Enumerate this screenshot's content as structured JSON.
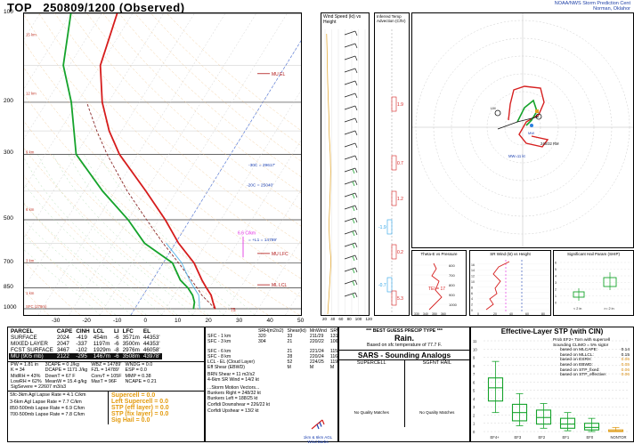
{
  "header": {
    "station": "TOP",
    "time_label": "250809/1200",
    "run_label": "(Observed)",
    "org_line1": "NOAA/NWS Storm Prediction Cent",
    "org_line2": "Norman, Oklahor"
  },
  "skewt": {
    "pressure_ticks": [
      "100",
      "200",
      "300",
      "500",
      "700",
      "850",
      "1000"
    ],
    "temp_ticks": [
      "-30",
      "-20",
      "-10",
      "0",
      "10",
      "20",
      "30",
      "40",
      "50"
    ],
    "height_labels": [
      "15 km",
      "12 km",
      "9 km",
      "6 km",
      "3 km",
      "1 km",
      "SFC (279m)"
    ],
    "annotations": {
      "mu_el": "MU EL",
      "mu_lfc": "MU LFC",
      "ml_lcl": "ML LCL",
      "hgz_top": "-30C = 29617'",
      "hgz_bot": "-20C = 25040'",
      "cape_lbl": "6.6 C/km",
      "frz_lbl": "= +L1 = 14789'",
      "pct_lbl": "75"
    }
  },
  "wind_panel": {
    "title": "Wind Speed (kt) vs Height",
    "ticks": [
      "20",
      "40",
      "60",
      "80",
      "100",
      "120"
    ]
  },
  "inferred_panel": {
    "title": "Inferred Temp Advection (C/hr)",
    "values": [
      "1.9",
      "0.7",
      "1.2",
      "-1.9",
      "0.2",
      "-0.7",
      "5.3"
    ]
  },
  "hodograph": {
    "labels": [
      "RM",
      "LM",
      "MW",
      "248/32 RM",
      "MW=11 kt"
    ]
  },
  "theta_panel": {
    "title": "Theta-E vs Pressure",
    "value": "TEI = 17",
    "ticks_x": [
      "330",
      "340",
      "350",
      "360"
    ],
    "ticks_y": [
      "600",
      "700",
      "800",
      "900",
      "1000"
    ]
  },
  "srwind_panel": {
    "title": "SR Wind (kt) vs Height",
    "ticks_x": [
      "0",
      "20",
      "40",
      "60",
      "80"
    ],
    "ticks_y": [
      "0",
      "2",
      "4",
      "6",
      "8",
      "10",
      "12",
      "14",
      "16"
    ]
  },
  "hail_panel": {
    "title": "Significant Hail Param (SHIP)",
    "labels": [
      "< 2 in",
      ">= 2 in"
    ],
    "ticks": [
      "0",
      "1",
      "2",
      "3",
      "4",
      "5",
      "6"
    ]
  },
  "parcel_table": {
    "headers": [
      "PARCEL",
      "CAPE",
      "CINH",
      "LCL",
      "LI",
      "LFC",
      "EL"
    ],
    "rows": [
      [
        "SURFACE",
        "2024",
        "-419",
        "454m",
        "-6",
        "3571m",
        "44353'"
      ],
      [
        "MIXED LAYER",
        "2047",
        "-337",
        "1197m",
        "-6",
        "3500m",
        "44353'"
      ],
      [
        "FCST SURFACE",
        "3467",
        "-102",
        "1929m",
        "-8",
        "2976m",
        "46058'"
      ],
      [
        "MU (905 mb)",
        "2122",
        "-295",
        "1467m",
        "-6",
        "3508m",
        "43978'"
      ]
    ]
  },
  "indices": [
    [
      "PW = 1.81 in",
      "3CAPE = 0 J/kg",
      "WBZ = 14789'",
      "WNDG = 0.0"
    ],
    [
      "K = 34",
      "DCAPE = 1171 J/kg",
      "FZL = 14789'",
      "ESP = 0.0"
    ],
    [
      "MidRH = 43%",
      "DownT = 67 F",
      "ConvT = 105F",
      "MMP = 0.38"
    ],
    [
      "LowRH = 62%",
      "MeanW = 15.4 g/kg",
      "MaxT = 96F",
      "NCAPE = 0.21"
    ],
    [
      "SigSevere = 22607 m3/s3",
      "",
      "",
      ""
    ]
  ],
  "lapse_rates": [
    "Sfc-3km Agl Lapse Rate = 4.1 C/km",
    "3-6km Agl Lapse Rate = 7.7 C/km",
    "850-500mb Lapse Rate = 6.9 C/km",
    "700-500mb Lapse Rate = 7.8 C/km"
  ],
  "composites": [
    "Supercell = 0.0",
    "Left Supercell = 0.0",
    "STP (eff layer) = 0.0",
    "STP (fix layer) = 0.0",
    "Sig Hail = 0.0"
  ],
  "kinematic_table": {
    "headers": [
      "",
      "SRH(m2/s2)",
      "Shear(kt)",
      "MnWind",
      "SRW"
    ],
    "rows": [
      [
        "SFC - 1 km",
        "320",
        "33",
        "211/29",
        "131/20"
      ],
      [
        "SFC - 3 km",
        "304",
        "21",
        "220/22",
        "106/16"
      ],
      [
        "",
        "",
        "",
        "",
        ""
      ],
      [
        "SFC - 6 km",
        "",
        "21",
        "221/24",
        "115/15"
      ],
      [
        "SFC - 8 km",
        "",
        "28",
        "220/24",
        "116/16"
      ],
      [
        "LCL - EL (Cloud Layer)",
        "",
        "52",
        "224/25",
        "119/14"
      ],
      [
        "Eff Shear (EBWD)",
        "",
        "M",
        "M",
        "M"
      ]
    ],
    "extra": [
      "BRN Shear = 11 m2/s2",
      "4-6km SR Wind = 14/2 kt",
      "...Storm Motion Vectors...",
      "Bunkers Right = 248/32 kt",
      "Bunkers Left = 188/25 kt",
      "Corfidi Downshear = 226/22 kt",
      "Corfidi Upshear = 13/2 kt"
    ],
    "legend": [
      "1km & 6km AGL",
      "Wind Barbs"
    ]
  },
  "precip": {
    "title": "*** BEST GUESS PRECIP TYPE ***",
    "type": "Rain.",
    "basis": "Based on sfc temperature of 77.7 F."
  },
  "sars": {
    "title": "SARS - Sounding Analogs",
    "col1": "SUPERCELL",
    "col2": "SGFNT HAIL",
    "none1": "No Quality Matches",
    "none2": "No Quality Matches"
  },
  "stp": {
    "title": "Effective-Layer STP (with CIN)",
    "prob_line1": "Prob EF2+ Torn with supercell",
    "prob_line2": "Sounding CLIMO = 5% sigtor",
    "rows": [
      [
        "based on MLCAPE:",
        "0.14"
      ],
      [
        "based on MLLCL:",
        "0.15"
      ],
      [
        "based on ESRH:",
        "0.06"
      ],
      [
        "based on EBWD:",
        "0.05"
      ],
      [
        "based on STP_fixed:",
        "0.06"
      ],
      [
        "based on STP_effective:",
        "0.06"
      ]
    ],
    "categories": [
      "EF4+",
      "EF3",
      "EF2",
      "EF1",
      "EF0",
      "NONTOR"
    ],
    "ticks": [
      "0",
      "1",
      "2",
      "3",
      "4",
      "5",
      "6",
      "7",
      "8",
      "9",
      "10",
      "11"
    ]
  },
  "chart_data": [
    {
      "type": "line",
      "name": "skew-t",
      "yaxis": "pressure (mb)",
      "ylim": [
        1000,
        100
      ],
      "xlim": [
        -40,
        50
      ],
      "series": [
        {
          "name": "temperature",
          "color": "#d61c1c",
          "points": [
            [
              1000,
              26
            ],
            [
              950,
              24
            ],
            [
              900,
              22
            ],
            [
              850,
              19
            ],
            [
              800,
              16
            ],
            [
              700,
              10
            ],
            [
              600,
              1
            ],
            [
              500,
              -8
            ],
            [
              400,
              -20
            ],
            [
              300,
              -36
            ],
            [
              250,
              -44
            ],
            [
              200,
              -52
            ],
            [
              150,
              -60
            ],
            [
              100,
              -65
            ]
          ]
        },
        {
          "name": "dewpoint",
          "color": "#15a32b",
          "points": [
            [
              1000,
              19
            ],
            [
              950,
              18
            ],
            [
              900,
              16
            ],
            [
              850,
              13
            ],
            [
              800,
              9
            ],
            [
              700,
              3
            ],
            [
              600,
              -10
            ],
            [
              500,
              -20
            ],
            [
              400,
              -34
            ],
            [
              300,
              -50
            ],
            [
              200,
              -62
            ],
            [
              150,
              -72
            ],
            [
              100,
              -80
            ]
          ]
        }
      ]
    },
    {
      "type": "bar",
      "name": "stp-boxplot",
      "categories": [
        "EF4+",
        "EF3",
        "EF2",
        "EF1",
        "EF0",
        "NONTOR"
      ],
      "boxes": [
        [
          2.3,
          3.7,
          5.3,
          6.5,
          8.5
        ],
        [
          0.7,
          1.3,
          2.3,
          3.3,
          4.6
        ],
        [
          0.4,
          0.9,
          1.7,
          2.6,
          3.4
        ],
        [
          0.1,
          0.4,
          0.9,
          1.6,
          2.3
        ],
        [
          0.0,
          0.2,
          0.5,
          1.0,
          1.6
        ],
        [
          0.0,
          0.0,
          0.05,
          0.2,
          0.5
        ]
      ],
      "ylim": [
        0,
        11
      ]
    }
  ]
}
